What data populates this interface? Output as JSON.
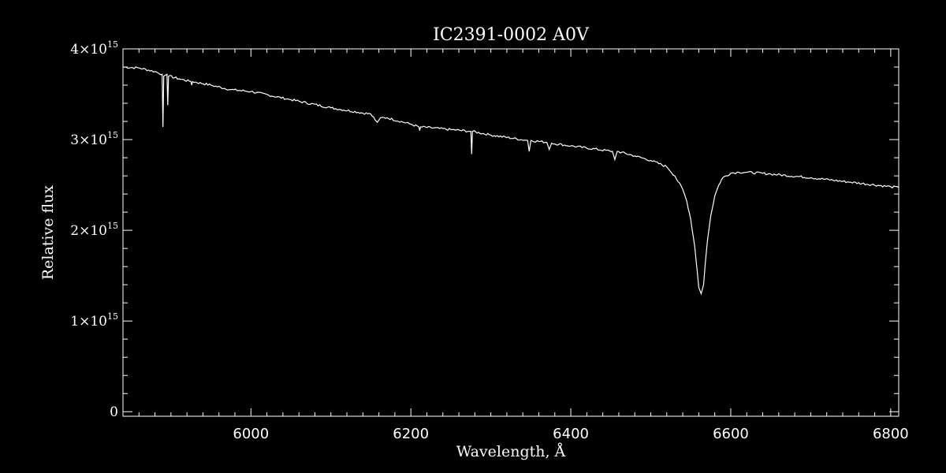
{
  "chart_data": {
    "type": "line",
    "title": "IC2391-0002   A0V",
    "xlabel": "Wavelength, Å",
    "ylabel": "Relative flux",
    "xlim": [
      5840,
      6810
    ],
    "ylim": [
      -0.05,
      4.0
    ],
    "y_exponent": 15,
    "x_ticks": [
      6000,
      6200,
      6400,
      6600,
      6800
    ],
    "y_ticks": [
      {
        "mantissa": "0",
        "value": 0,
        "exp": ""
      },
      {
        "mantissa": "1×10",
        "value": 1,
        "exp": "15"
      },
      {
        "mantissa": "2×10",
        "value": 2,
        "exp": "15"
      },
      {
        "mantissa": "3×10",
        "value": 3,
        "exp": "15"
      },
      {
        "mantissa": "4×10",
        "value": 4,
        "exp": "15"
      }
    ],
    "grid": false,
    "series": [
      {
        "color": "#ffffff",
        "x": [
          5840,
          5860,
          5880,
          5889,
          5890,
          5891,
          5895,
          5896,
          5897,
          5910,
          5925,
          5926,
          5927,
          5950,
          5975,
          6000,
          6050,
          6100,
          6150,
          6155,
          6158,
          6162,
          6170,
          6200,
          6210,
          6211,
          6212,
          6250,
          6275,
          6276,
          6277,
          6300,
          6346,
          6348,
          6350,
          6370,
          6373,
          6376,
          6400,
          6452,
          6455,
          6458,
          6480,
          6500,
          6520,
          6530,
          6540,
          6545,
          6550,
          6555,
          6558,
          6560,
          6563,
          6566,
          6568,
          6571,
          6575,
          6580,
          6585,
          6590,
          6600,
          6610,
          6620,
          6650,
          6700,
          6750,
          6800,
          6810
        ],
        "y": [
          3.8,
          3.79,
          3.75,
          3.72,
          3.14,
          3.7,
          3.72,
          3.38,
          3.7,
          3.67,
          3.64,
          3.6,
          3.64,
          3.6,
          3.55,
          3.53,
          3.44,
          3.35,
          3.28,
          3.22,
          3.19,
          3.24,
          3.24,
          3.17,
          3.14,
          3.1,
          3.14,
          3.11,
          3.09,
          2.84,
          3.09,
          3.05,
          2.99,
          2.87,
          2.99,
          2.97,
          2.89,
          2.96,
          2.93,
          2.87,
          2.78,
          2.87,
          2.82,
          2.77,
          2.7,
          2.6,
          2.45,
          2.32,
          2.12,
          1.82,
          1.55,
          1.37,
          1.3,
          1.4,
          1.62,
          1.9,
          2.16,
          2.38,
          2.5,
          2.58,
          2.63,
          2.64,
          2.64,
          2.62,
          2.58,
          2.53,
          2.48,
          2.47
        ]
      }
    ]
  }
}
